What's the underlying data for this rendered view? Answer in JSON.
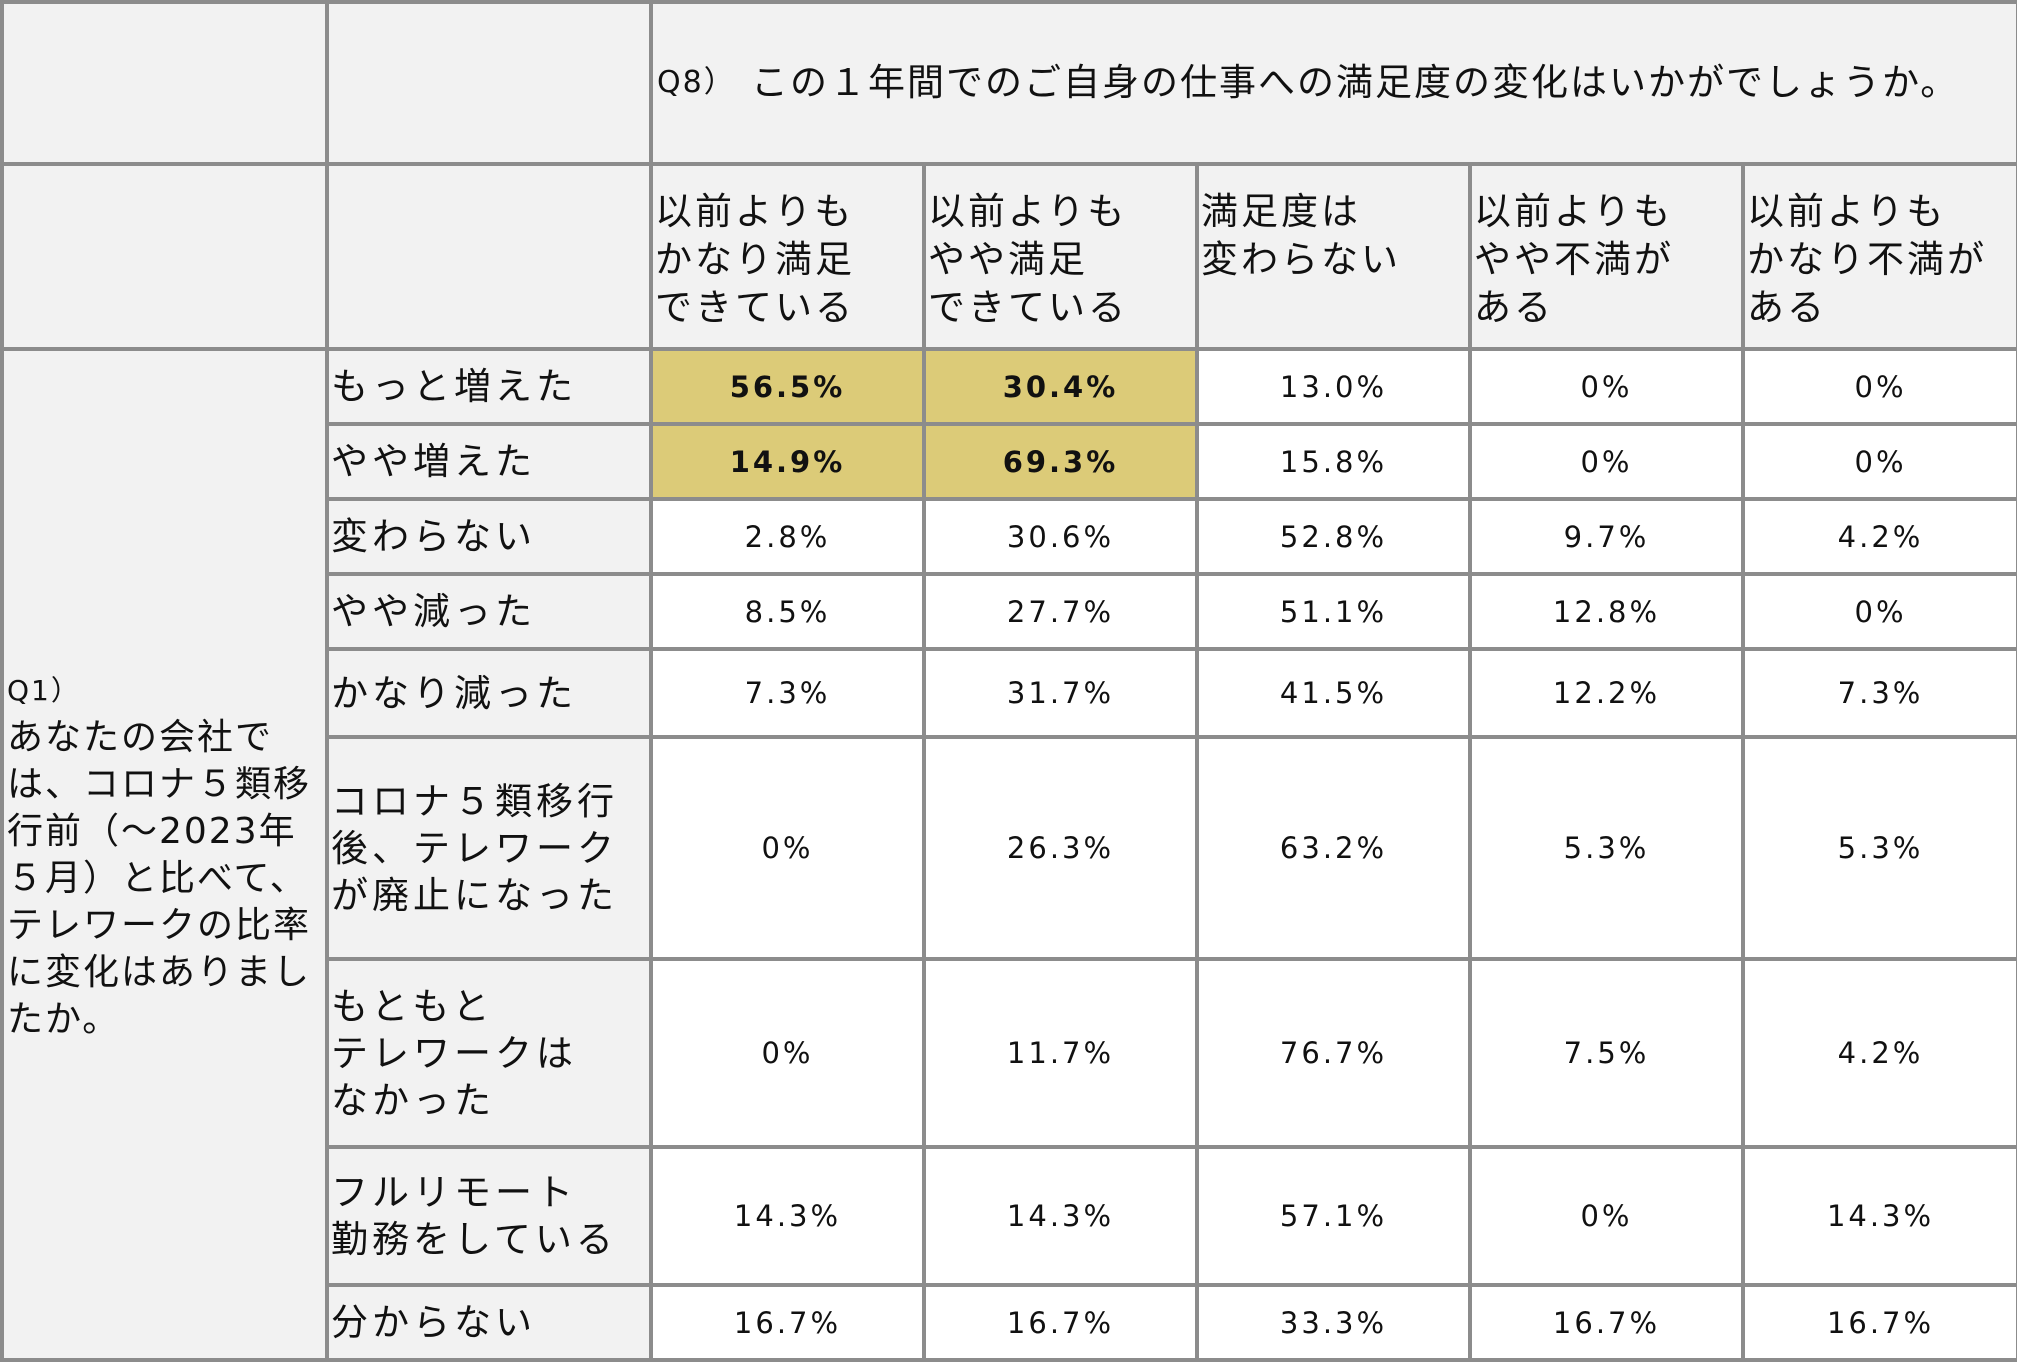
{
  "q8": {
    "number": "Q8）",
    "text": "この１年間でのご自身の仕事への満足度の変化はいかがでしょうか。"
  },
  "q1": {
    "number": "Q1）",
    "text": "あなたの会社では、コロナ５類移行前（～2023年５月）と比べて、テレワークの比率に変化はありましたか。"
  },
  "columns": [
    "以前よりも\nかなり満足\nできている",
    "以前よりも\nやや満足\nできている",
    "満足度は\n変わらない",
    "以前よりも\nやや不満が\nある",
    "以前よりも\nかなり不満が\nある"
  ],
  "rows": [
    {
      "label": "もっと増えた",
      "values": [
        "56.5%",
        "30.4%",
        "13.0%",
        "0%",
        "0%"
      ],
      "highlight": [
        true,
        true,
        false,
        false,
        false
      ]
    },
    {
      "label": "やや増えた",
      "values": [
        "14.9%",
        "69.3%",
        "15.8%",
        "0%",
        "0%"
      ],
      "highlight": [
        true,
        true,
        false,
        false,
        false
      ]
    },
    {
      "label": "変わらない",
      "values": [
        "2.8%",
        "30.6%",
        "52.8%",
        "9.7%",
        "4.2%"
      ]
    },
    {
      "label": "やや減った",
      "values": [
        "8.5%",
        "27.7%",
        "51.1%",
        "12.8%",
        "0%"
      ]
    },
    {
      "label": "かなり減った",
      "values": [
        "7.3%",
        "31.7%",
        "41.5%",
        "12.2%",
        "7.3%"
      ]
    },
    {
      "label": "コロナ５類移行\n後、テレワーク\nが廃止になった",
      "values": [
        "0%",
        "26.3%",
        "63.2%",
        "5.3%",
        "5.3%"
      ]
    },
    {
      "label": "もともと\nテレワークは\nなかった",
      "values": [
        "0%",
        "11.7%",
        "76.7%",
        "7.5%",
        "4.2%"
      ]
    },
    {
      "label": "フルリモート\n勤務をしている",
      "values": [
        "14.3%",
        "14.3%",
        "57.1%",
        "0%",
        "14.3%"
      ]
    },
    {
      "label": "分からない",
      "values": [
        "16.7%",
        "16.7%",
        "33.3%",
        "16.7%",
        "16.7%"
      ]
    }
  ],
  "colors": {
    "border": "#8c8c8c",
    "header_bg": "#f2f2f2",
    "highlight_bg": "#dccb78"
  }
}
